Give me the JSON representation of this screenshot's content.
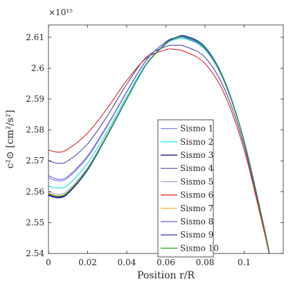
{
  "chart_data": {
    "type": "line",
    "xlabel": "Position r/R",
    "ylabel": "c²⊙ [cm²/s²]",
    "y_multiplier": "×10¹⁵",
    "xlim": [
      0,
      0.12
    ],
    "ylim": [
      2.54,
      2.614
    ],
    "xticks": [
      0,
      0.02,
      0.04,
      0.06,
      0.08,
      0.1
    ],
    "xtick_labels": [
      "0",
      "0.02",
      "0.04",
      "0.06",
      "0.08",
      "0.1"
    ],
    "yticks": [
      2.54,
      2.55,
      2.56,
      2.57,
      2.58,
      2.59,
      2.6,
      2.61
    ],
    "ytick_labels": [
      "2.54",
      "2.55",
      "2.56",
      "2.57",
      "2.58",
      "2.59",
      "2.6",
      "2.61"
    ],
    "grid": false,
    "legend_position": "center-right",
    "series": [
      {
        "name": "Sismo 1",
        "color": "#8080ff",
        "x": [
          0,
          0.005,
          0.01,
          0.02,
          0.03,
          0.04,
          0.05,
          0.06,
          0.065,
          0.07,
          0.08,
          0.09,
          0.1,
          0.11,
          0.113
        ],
        "y": [
          2.5645,
          2.5635,
          2.5645,
          2.5712,
          2.5812,
          2.5922,
          2.6025,
          2.6085,
          2.6097,
          2.6098,
          2.6062,
          2.5955,
          2.5762,
          2.5488,
          2.5395
        ]
      },
      {
        "name": "Sismo 2",
        "color": "#00e5e5",
        "x": [
          0,
          0.005,
          0.01,
          0.02,
          0.03,
          0.04,
          0.05,
          0.06,
          0.065,
          0.07,
          0.08,
          0.09,
          0.1,
          0.11,
          0.113
        ],
        "y": [
          2.5618,
          2.5612,
          2.5622,
          2.5692,
          2.5795,
          2.5908,
          2.6015,
          2.6078,
          2.6093,
          2.6095,
          2.606,
          2.5953,
          2.576,
          2.5487,
          2.5394
        ]
      },
      {
        "name": "Sismo 3",
        "color": "#00007f",
        "x": [
          0,
          0.005,
          0.01,
          0.02,
          0.03,
          0.04,
          0.05,
          0.06,
          0.065,
          0.07,
          0.08,
          0.09,
          0.1,
          0.11,
          0.113
        ],
        "y": [
          2.559,
          2.5582,
          2.5596,
          2.5672,
          2.5782,
          2.59,
          2.6012,
          2.608,
          2.6098,
          2.6103,
          2.6068,
          2.5958,
          2.5763,
          2.5489,
          2.5395
        ]
      },
      {
        "name": "Sismo 4",
        "color": "#4646a8",
        "x": [
          0,
          0.005,
          0.01,
          0.02,
          0.03,
          0.04,
          0.05,
          0.06,
          0.065,
          0.07,
          0.08,
          0.09,
          0.1,
          0.11,
          0.113
        ],
        "y": [
          2.57,
          2.5692,
          2.57,
          2.5755,
          2.5845,
          2.5948,
          2.6035,
          2.607,
          2.6074,
          2.607,
          2.6035,
          2.5932,
          2.5748,
          2.5482,
          2.5392
        ]
      },
      {
        "name": "Sismo 5",
        "color": "#a0a0c8",
        "x": [
          0,
          0.005,
          0.01,
          0.02,
          0.03,
          0.04,
          0.05,
          0.06,
          0.065,
          0.07,
          0.08,
          0.09,
          0.1,
          0.11,
          0.113
        ],
        "y": [
          2.56,
          2.5592,
          2.5604,
          2.5678,
          2.5786,
          2.5902,
          2.6012,
          2.6078,
          2.6096,
          2.61,
          2.6066,
          2.5957,
          2.5762,
          2.5488,
          2.5395
        ]
      },
      {
        "name": "Sismo 6",
        "color": "#e02020",
        "x": [
          0,
          0.005,
          0.01,
          0.02,
          0.03,
          0.04,
          0.05,
          0.06,
          0.065,
          0.07,
          0.08,
          0.09,
          0.1,
          0.11,
          0.113
        ],
        "y": [
          2.5735,
          2.5728,
          2.5738,
          2.579,
          2.587,
          2.596,
          2.6032,
          2.606,
          2.606,
          2.6053,
          2.6015,
          2.5915,
          2.5735,
          2.5476,
          2.539
        ]
      },
      {
        "name": "Sismo 7",
        "color": "#f0a030",
        "x": [
          0,
          0.005,
          0.01,
          0.02,
          0.03,
          0.04,
          0.05,
          0.06,
          0.065,
          0.07,
          0.08,
          0.09,
          0.1,
          0.11,
          0.113
        ],
        "y": [
          2.5595,
          2.5587,
          2.56,
          2.5675,
          2.5784,
          2.5901,
          2.6012,
          2.6079,
          2.6097,
          2.6101,
          2.6067,
          2.5957,
          2.5762,
          2.5488,
          2.5395
        ]
      },
      {
        "name": "Sismo 8",
        "color": "#6060e0",
        "x": [
          0,
          0.005,
          0.01,
          0.02,
          0.03,
          0.04,
          0.05,
          0.06,
          0.065,
          0.07,
          0.08,
          0.09,
          0.1,
          0.11,
          0.113
        ],
        "y": [
          2.5652,
          2.564,
          2.565,
          2.5716,
          2.5815,
          2.5924,
          2.6026,
          2.6086,
          2.6098,
          2.6099,
          2.6063,
          2.5955,
          2.5762,
          2.5488,
          2.5395
        ]
      },
      {
        "name": "Sismo 9",
        "color": "#1e1ec8",
        "x": [
          0,
          0.005,
          0.01,
          0.02,
          0.03,
          0.04,
          0.05,
          0.06,
          0.065,
          0.07,
          0.08,
          0.09,
          0.1,
          0.11,
          0.113
        ],
        "y": [
          2.5588,
          2.558,
          2.5594,
          2.567,
          2.5781,
          2.5899,
          2.6012,
          2.6081,
          2.6099,
          2.6104,
          2.6069,
          2.5959,
          2.5764,
          2.549,
          2.5396
        ]
      },
      {
        "name": "Sismo 10",
        "color": "#20a020",
        "x": [
          0,
          0.005,
          0.01,
          0.02,
          0.03,
          0.04,
          0.05,
          0.06,
          0.065,
          0.07,
          0.08,
          0.09,
          0.1,
          0.11,
          0.113
        ],
        "y": [
          2.5593,
          2.5585,
          2.5598,
          2.5674,
          2.5783,
          2.59,
          2.6012,
          2.6079,
          2.6097,
          2.6101,
          2.6067,
          2.5957,
          2.5762,
          2.5488,
          2.5395
        ]
      }
    ]
  }
}
